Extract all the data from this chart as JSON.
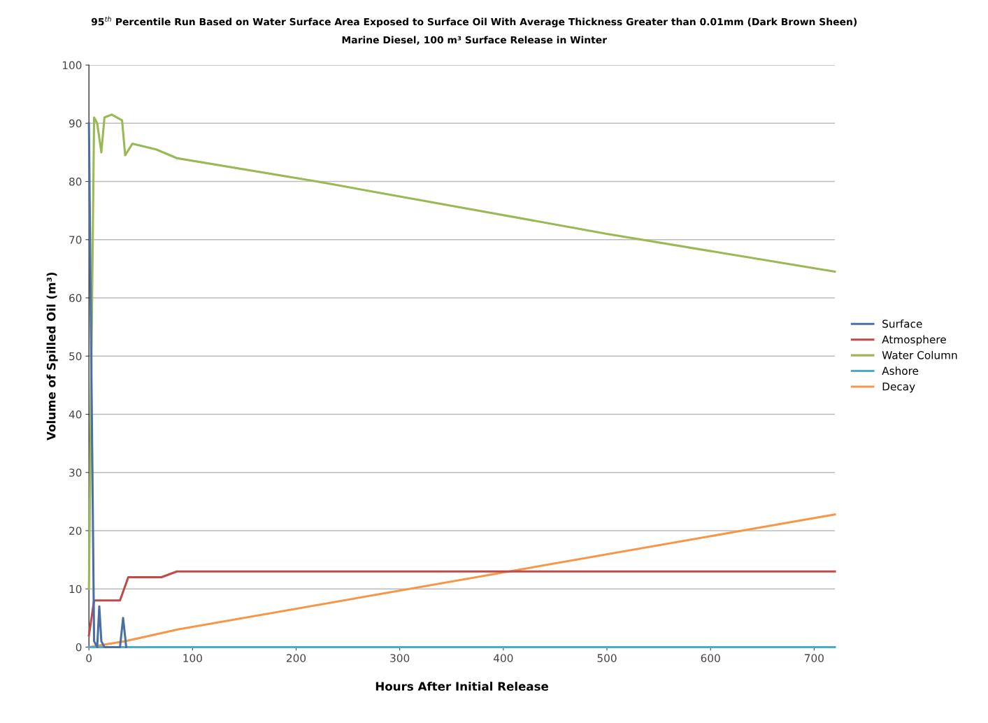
{
  "chart_data": {
    "type": "line",
    "title": "95$^{th}$ Percentile Run Based on Water Surface Area Exposed to Surface Oil With Average Thickness Greater than 0.01mm (Dark Brown Sheen)",
    "subtitle": "Marine Diesel, 100 m³ Surface Release in Winter",
    "xlabel": "Hours After Initial Release",
    "ylabel": "Volume of Spilled Oil (m³)",
    "xlim": [
      0,
      720
    ],
    "xticks": [
      0,
      100,
      200,
      300,
      400,
      500,
      600,
      700
    ],
    "ylim": [
      0,
      100
    ],
    "yticks": [
      0,
      10,
      20,
      30,
      40,
      50,
      60,
      70,
      80,
      90,
      100
    ],
    "grid": "y",
    "legend": "right",
    "marker": "none",
    "line_style": "solid",
    "series": [
      {
        "name": "Surface",
        "color": "#4a6fa5",
        "x": [
          0,
          5,
          8,
          10,
          12,
          15,
          30,
          33,
          36
        ],
        "values": [
          90,
          1,
          0,
          7,
          1,
          0,
          0,
          5,
          0
        ]
      },
      {
        "name": "Atmosphere",
        "color": "#be4b48",
        "x": [
          0,
          5,
          30,
          38,
          70,
          85,
          720
        ],
        "values": [
          2,
          8,
          8,
          12,
          12,
          13,
          13
        ]
      },
      {
        "name": "Water Column",
        "color": "#98b954",
        "x": [
          0,
          5,
          8,
          12,
          15,
          22,
          32,
          35,
          42,
          65,
          85,
          220,
          500,
          720
        ],
        "values": [
          10,
          91,
          90,
          85,
          91,
          91.5,
          90.5,
          84.5,
          86.5,
          85.5,
          84,
          80,
          71,
          64.5
        ]
      },
      {
        "name": "Ashore",
        "color": "#4bacc6",
        "x": [
          0,
          720
        ],
        "values": [
          0,
          0
        ]
      },
      {
        "name": "Decay",
        "color": "#f79646",
        "x": [
          0,
          35,
          85,
          720
        ],
        "values": [
          0,
          1,
          3,
          22.8
        ]
      }
    ]
  }
}
